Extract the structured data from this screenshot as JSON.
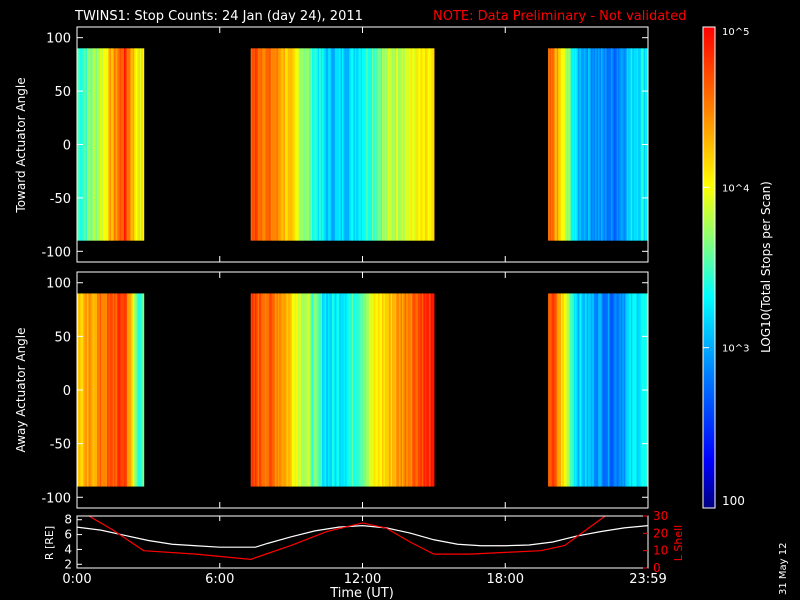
{
  "header": {
    "title": "TWINS1: Stop Counts: 24 Jan (day  24), 2011",
    "note": "NOTE: Data Preliminary - Not validated"
  },
  "side_date": "31 May 12",
  "colors": {
    "background": "#000000",
    "axis": "#ffffff",
    "note": "#ff0000",
    "r_line": "#ffffff",
    "l_shell_line": "#ff0000"
  },
  "colorbar": {
    "label": "LOG10(Total Stops per Scan)",
    "ticks": [
      "10^5",
      "10^4",
      "10^3",
      "100"
    ],
    "scale": "log",
    "range": [
      100,
      100000
    ],
    "colormap": [
      "#000080",
      "#0000ff",
      "#0080ff",
      "#00ffff",
      "#80ff80",
      "#ffff00",
      "#ff8000",
      "#ff0000"
    ]
  },
  "chart_data": [
    {
      "type": "heatmap",
      "ylabel": "Toward Actuator Angle",
      "ylim": [
        -110,
        110
      ],
      "yticks": [
        "100",
        "50",
        "0",
        "-50",
        "-100"
      ],
      "xlim": [
        0,
        24
      ],
      "data_windows_ut": [
        [
          0.0,
          2.8
        ],
        [
          7.3,
          15.0
        ],
        [
          19.8,
          24.0
        ]
      ],
      "log_counts_profile": {
        "t_ut": [
          0.2,
          1.0,
          2.0,
          2.5,
          7.5,
          8.5,
          10.5,
          11.5,
          12.5,
          13.5,
          14.5,
          20.0,
          21.0,
          22.5,
          23.5
        ],
        "log10_counts": [
          3.5,
          3.9,
          4.8,
          4.0,
          4.7,
          4.4,
          3.1,
          3.2,
          3.6,
          3.9,
          4.0,
          4.5,
          3.1,
          2.8,
          3.3
        ]
      }
    },
    {
      "type": "heatmap",
      "ylabel": "Away Actuator Angle",
      "ylim": [
        -110,
        110
      ],
      "yticks": [
        "100",
        "50",
        "0",
        "-50",
        "-100"
      ],
      "xlim": [
        0,
        24
      ],
      "data_windows_ut": [
        [
          0.0,
          2.8
        ],
        [
          7.3,
          15.0
        ],
        [
          19.8,
          24.0
        ]
      ],
      "log_counts_profile": {
        "t_ut": [
          0.2,
          1.0,
          2.0,
          2.5,
          7.5,
          8.5,
          10.5,
          11.5,
          12.5,
          13.5,
          14.5,
          20.0,
          21.0,
          22.5,
          23.5
        ],
        "log10_counts": [
          4.2,
          4.5,
          4.8,
          3.5,
          4.7,
          4.5,
          3.2,
          3.4,
          4.0,
          4.4,
          4.8,
          4.7,
          3.2,
          2.8,
          3.3
        ]
      }
    },
    {
      "type": "line",
      "ylabel": "R [RE]",
      "y2label": "L Shell",
      "xlabel": "Time (UT)",
      "xlim": [
        0,
        24
      ],
      "ylim": [
        1.5,
        8.5
      ],
      "y2lim": [
        0,
        30
      ],
      "xticks": [
        "0:00",
        "6:00",
        "12:00",
        "18:00",
        "23:59"
      ],
      "xtick_values": [
        0,
        6,
        12,
        18,
        24
      ],
      "yticks": [
        "8",
        "6",
        "4",
        "2"
      ],
      "y2ticks": [
        "30",
        "20",
        "10",
        "0"
      ],
      "series": [
        {
          "name": "R [RE]",
          "x": [
            0,
            1,
            2,
            3,
            4,
            5,
            6,
            7,
            7.5,
            8,
            9,
            10,
            11,
            12,
            13,
            14,
            15,
            16,
            17,
            18,
            19,
            20,
            21,
            22,
            23,
            24
          ],
          "y": [
            7.0,
            6.6,
            5.9,
            5.2,
            4.7,
            4.5,
            4.3,
            4.3,
            4.3,
            4.8,
            5.7,
            6.5,
            7.0,
            7.2,
            6.9,
            6.2,
            5.3,
            4.7,
            4.5,
            4.5,
            4.6,
            5.0,
            5.8,
            6.4,
            6.9,
            7.2
          ]
        },
        {
          "name": "L Shell",
          "x": [
            0.5,
            1.5,
            2.8,
            5.0,
            7.3,
            9.0,
            10.5,
            12.0,
            13.0,
            14.0,
            15.0,
            16.5,
            18.0,
            19.5,
            20.5,
            21.5,
            22.2
          ],
          "y": [
            30,
            22,
            10,
            8,
            5,
            13,
            21,
            26,
            23,
            15,
            8,
            8,
            9,
            10,
            13,
            23,
            30
          ]
        }
      ]
    }
  ]
}
